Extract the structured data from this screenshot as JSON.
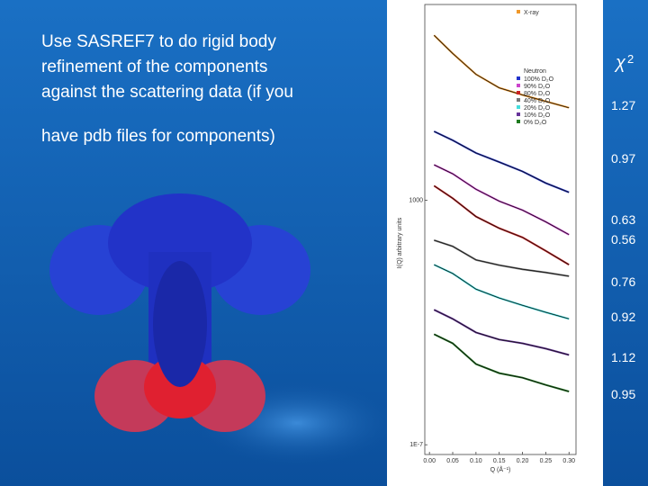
{
  "slide": {
    "text_lines": [
      "Use SASREF7 to do rigid body",
      "refinement of the components",
      "against the scattering data (if you",
      "have pdb files for components)"
    ],
    "chi2_symbol": "χ",
    "chi2_power": "2",
    "chi2_values": [
      1.27,
      0.97,
      0.63,
      0.56,
      0.76,
      0.92,
      1.12,
      0.95
    ]
  },
  "chart_data": {
    "type": "line",
    "xlabel": "Q (Å⁻¹)",
    "ylabel": "I(Q) arbitrary units",
    "log_y": true,
    "xlim": [
      -0.01,
      0.315
    ],
    "ylim": [
      4e-08,
      100000000000.0
    ],
    "xticks": [
      {
        "value": 0,
        "label": "0.00"
      },
      {
        "value": 0.05,
        "label": "0.05"
      },
      {
        "value": 0.1,
        "label": "0.10"
      },
      {
        "value": 0.15,
        "label": "0.15"
      },
      {
        "value": 0.2,
        "label": "0.20"
      },
      {
        "value": 0.25,
        "label": "0.25"
      },
      {
        "value": 0.3,
        "label": "0.30"
      }
    ],
    "yticks": [
      1000,
      {
        "value": 1e-07,
        "label": "1E-7"
      }
    ],
    "legend_title": "Neutron",
    "x": [
      0.01,
      0.05,
      0.1,
      0.15,
      0.2,
      0.25,
      0.3
    ],
    "series": [
      {
        "name": "X-ray",
        "color": "#f0982a",
        "values": [
          5500000000.0,
          1000000000.0,
          140000000.0,
          39000000.0,
          20000000.0,
          11000000.0,
          6000000.0
        ]
      },
      {
        "name": "100% D₂O",
        "color": "#2233cc",
        "values": [
          650000.0,
          280000.0,
          85000.0,
          36000.0,
          15000.0,
          5000,
          2100
        ]
      },
      {
        "name": "90% D₂O",
        "color": "#cc44cc",
        "values": [
          28000.0,
          12000.0,
          2800,
          910,
          390,
          130,
          39
        ]
      },
      {
        "name": "80% D₂O",
        "color": "#cc2222",
        "values": [
          3900,
          1200,
          215,
          71,
          30,
          8.5,
          2.3
        ]
      },
      {
        "name": "40% D₂O",
        "color": "#777777",
        "values": [
          23,
          13,
          3.6,
          2.2,
          1.5,
          1.1,
          0.78
        ]
      },
      {
        "name": "20% D₂O",
        "color": "#44dddd",
        "values": [
          2.3,
          1.0,
          0.23,
          0.1,
          0.05,
          0.026,
          0.014
        ]
      },
      {
        "name": "10% D₂O",
        "color": "#663399",
        "values": [
          0.033,
          0.014,
          0.0039,
          0.002,
          0.0014,
          0.00085,
          0.00047
        ]
      },
      {
        "name": "0% D₂O",
        "color": "#1f7a1f",
        "values": [
          0.0033,
          0.0014,
          0.0002,
          8.5e-05,
          5.5e-05,
          2.8e-05,
          1.5e-05
        ]
      }
    ]
  }
}
